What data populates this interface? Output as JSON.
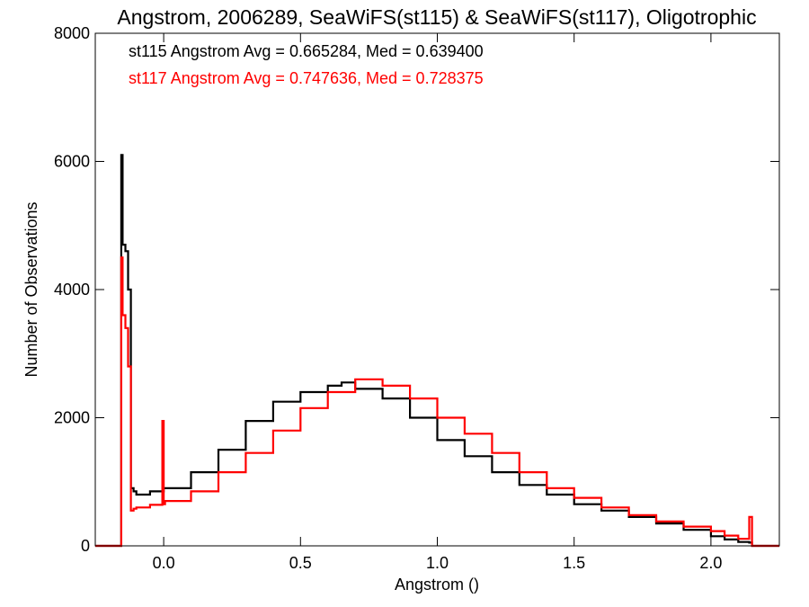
{
  "chart_data": {
    "type": "line",
    "title": "Angstrom, 2006289, SeaWiFS(st115) & SeaWiFS(st117), Oligotrophic",
    "xlabel": "Angstrom ()",
    "ylabel": "Number of Observations",
    "xlim": [
      -0.25,
      2.25
    ],
    "ylim": [
      0,
      8000
    ],
    "x_ticks": [
      0.0,
      0.5,
      1.0,
      1.5,
      2.0
    ],
    "x_tick_labels": [
      "0.0",
      "0.5",
      "1.0",
      "1.5",
      "2.0"
    ],
    "y_ticks": [
      0,
      2000,
      4000,
      6000,
      8000
    ],
    "y_tick_labels": [
      "0",
      "2000",
      "4000",
      "6000",
      "8000"
    ],
    "grid": false,
    "step": true,
    "legend_placement": "top-left",
    "series": [
      {
        "name": "st115",
        "color": "#000000",
        "annotation": "st115 Angstrom Avg = 0.665284, Med = 0.639400",
        "x": [
          -0.25,
          -0.155,
          -0.15,
          -0.14,
          -0.13,
          -0.12,
          -0.11,
          -0.1,
          -0.05,
          0.0,
          0.1,
          0.2,
          0.3,
          0.4,
          0.5,
          0.6,
          0.65,
          0.7,
          0.8,
          0.9,
          1.0,
          1.1,
          1.2,
          1.3,
          1.4,
          1.5,
          1.6,
          1.7,
          1.8,
          1.9,
          2.0,
          2.05,
          2.1,
          2.14,
          2.15,
          2.25
        ],
        "y": [
          0,
          6100,
          4700,
          4600,
          4000,
          900,
          850,
          800,
          850,
          900,
          1150,
          1500,
          1950,
          2250,
          2400,
          2500,
          2550,
          2450,
          2300,
          2000,
          1650,
          1400,
          1150,
          950,
          800,
          650,
          550,
          450,
          350,
          250,
          150,
          100,
          60,
          50,
          0,
          0
        ]
      },
      {
        "name": "st117",
        "color": "#ff0000",
        "annotation": "st117 Angstrom Avg = 0.747636, Med = 0.728375",
        "x": [
          -0.25,
          -0.155,
          -0.15,
          -0.14,
          -0.13,
          -0.12,
          -0.11,
          -0.1,
          -0.05,
          -0.005,
          0.0,
          0.005,
          0.1,
          0.2,
          0.3,
          0.4,
          0.5,
          0.6,
          0.7,
          0.8,
          0.9,
          1.0,
          1.1,
          1.2,
          1.3,
          1.4,
          1.5,
          1.6,
          1.7,
          1.8,
          1.9,
          2.0,
          2.05,
          2.1,
          2.14,
          2.15,
          2.25
        ],
        "y": [
          0,
          4500,
          3600,
          3400,
          2800,
          550,
          580,
          600,
          640,
          1950,
          650,
          700,
          850,
          1150,
          1450,
          1800,
          2150,
          2400,
          2600,
          2500,
          2300,
          2000,
          1750,
          1450,
          1150,
          900,
          750,
          600,
          480,
          380,
          300,
          230,
          160,
          110,
          450,
          0,
          0
        ]
      }
    ]
  }
}
